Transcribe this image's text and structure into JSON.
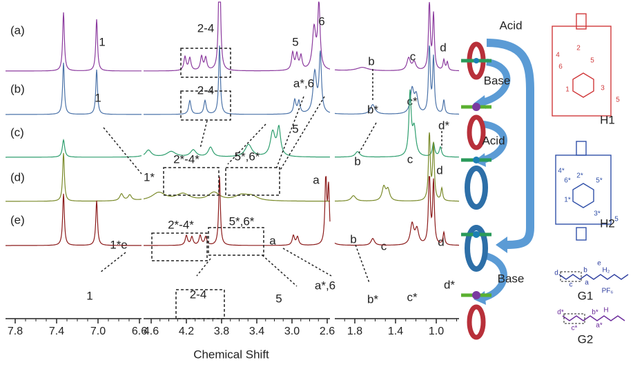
{
  "panels": [
    {
      "label": "(a)",
      "peaks": [
        "1",
        "2-4",
        "5",
        "6",
        "b",
        "c",
        "d"
      ]
    },
    {
      "label": "(b)",
      "peaks": [
        "1",
        "2-4",
        "a*,6",
        "5",
        "b*",
        "c*",
        "d*"
      ]
    },
    {
      "label": "(c)",
      "peaks": [
        "1*",
        "2*-4*",
        "5*,6*",
        "a",
        "b",
        "c",
        "d"
      ]
    },
    {
      "label": "(d)",
      "peaks": [
        "2*-4*",
        "5*,6*",
        "1*e",
        "a",
        "b",
        "c",
        "d"
      ]
    },
    {
      "label": "(e)",
      "peaks": [
        "1",
        "2-4",
        "5",
        "a*,6",
        "b*",
        "c*",
        "d*"
      ]
    }
  ],
  "axis": {
    "label": "Chemical Shift",
    "segments": [
      [
        "7.8",
        "7.4",
        "7.0",
        "6.6"
      ],
      [
        "4.6",
        "4.2",
        "3.8",
        "3.4",
        "3.0",
        "2.6"
      ],
      [
        "1.8",
        "1.4",
        "1.0"
      ]
    ]
  },
  "scheme": {
    "steps": [
      "Acid",
      "Base",
      "Acid",
      "Base"
    ]
  },
  "molecules": {
    "H1": {
      "name": "H1",
      "labels": [
        "4",
        "6",
        "2",
        "5",
        "1",
        "3",
        "5"
      ]
    },
    "H2": {
      "name": "H2",
      "labels": [
        "4*",
        "6*",
        "5*",
        "2*",
        "1*",
        "3*",
        "5"
      ]
    },
    "G1": {
      "name": "G1",
      "labels": [
        "d",
        "c",
        "b",
        "a",
        "e",
        "H₂",
        "PF₆"
      ]
    },
    "G2": {
      "name": "G2",
      "labels": [
        "d*",
        "c*",
        "b*",
        "a*",
        "H"
      ]
    }
  }
}
